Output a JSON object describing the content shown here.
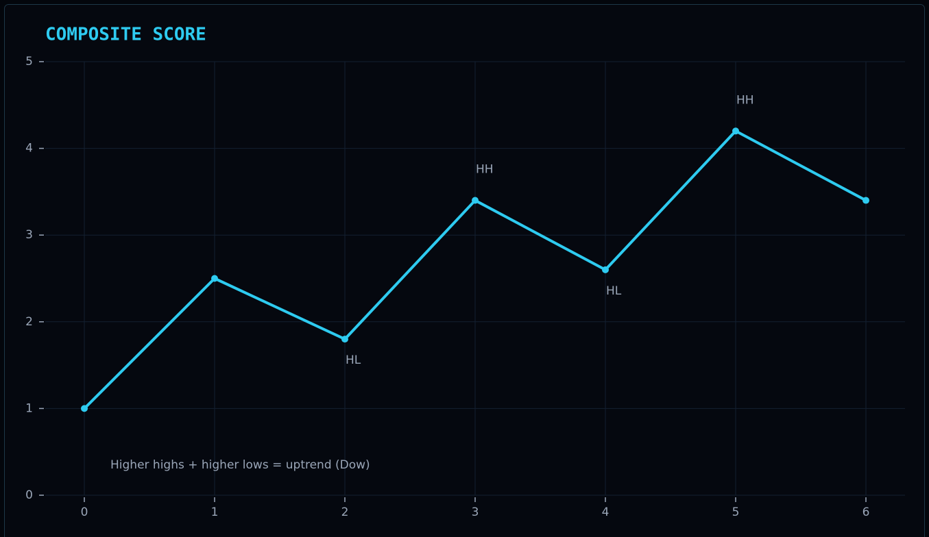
{
  "chart_data": {
    "type": "line",
    "title": "COMPOSITE SCORE",
    "x": [
      0,
      1,
      2,
      3,
      4,
      5,
      6
    ],
    "values": [
      1,
      2.5,
      1.8,
      3.4,
      2.6,
      4.2,
      3.4
    ],
    "point_labels": [
      null,
      null,
      "HL",
      "HH",
      "HL",
      "HH",
      null
    ],
    "annotation": "Higher highs + higher lows = uptrend (Dow)",
    "color": "#2ecbf0",
    "xlim": [
      -0.3,
      6.3
    ],
    "xticks": [
      0,
      1,
      2,
      3,
      4,
      5,
      6
    ],
    "ylim": [
      0,
      5
    ],
    "yticks": [
      0,
      1,
      2,
      3,
      4,
      5
    ],
    "grid": true
  }
}
